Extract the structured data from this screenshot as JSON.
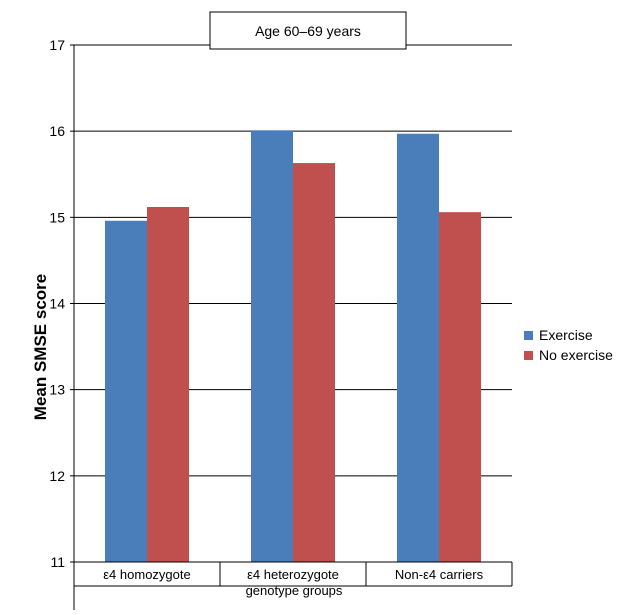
{
  "chart_data": {
    "type": "bar",
    "title": "Age 60–69 years",
    "ylabel": "Mean SMSE score",
    "xlabel": "genotype groups",
    "ylim": [
      11,
      17
    ],
    "yticks": [
      11,
      12,
      13,
      14,
      15,
      16,
      17
    ],
    "grid": true,
    "legend_position": "right",
    "categories": [
      "ε4 homozygote",
      "ε4 heterozygote",
      "Non-ε4 carriers"
    ],
    "series": [
      {
        "name": "Exercise",
        "color": "#4a7ebb",
        "values": [
          14.96,
          16.01,
          15.97
        ]
      },
      {
        "name": "No exercise",
        "color": "#c0504d",
        "values": [
          15.12,
          15.63,
          15.06
        ]
      }
    ]
  }
}
